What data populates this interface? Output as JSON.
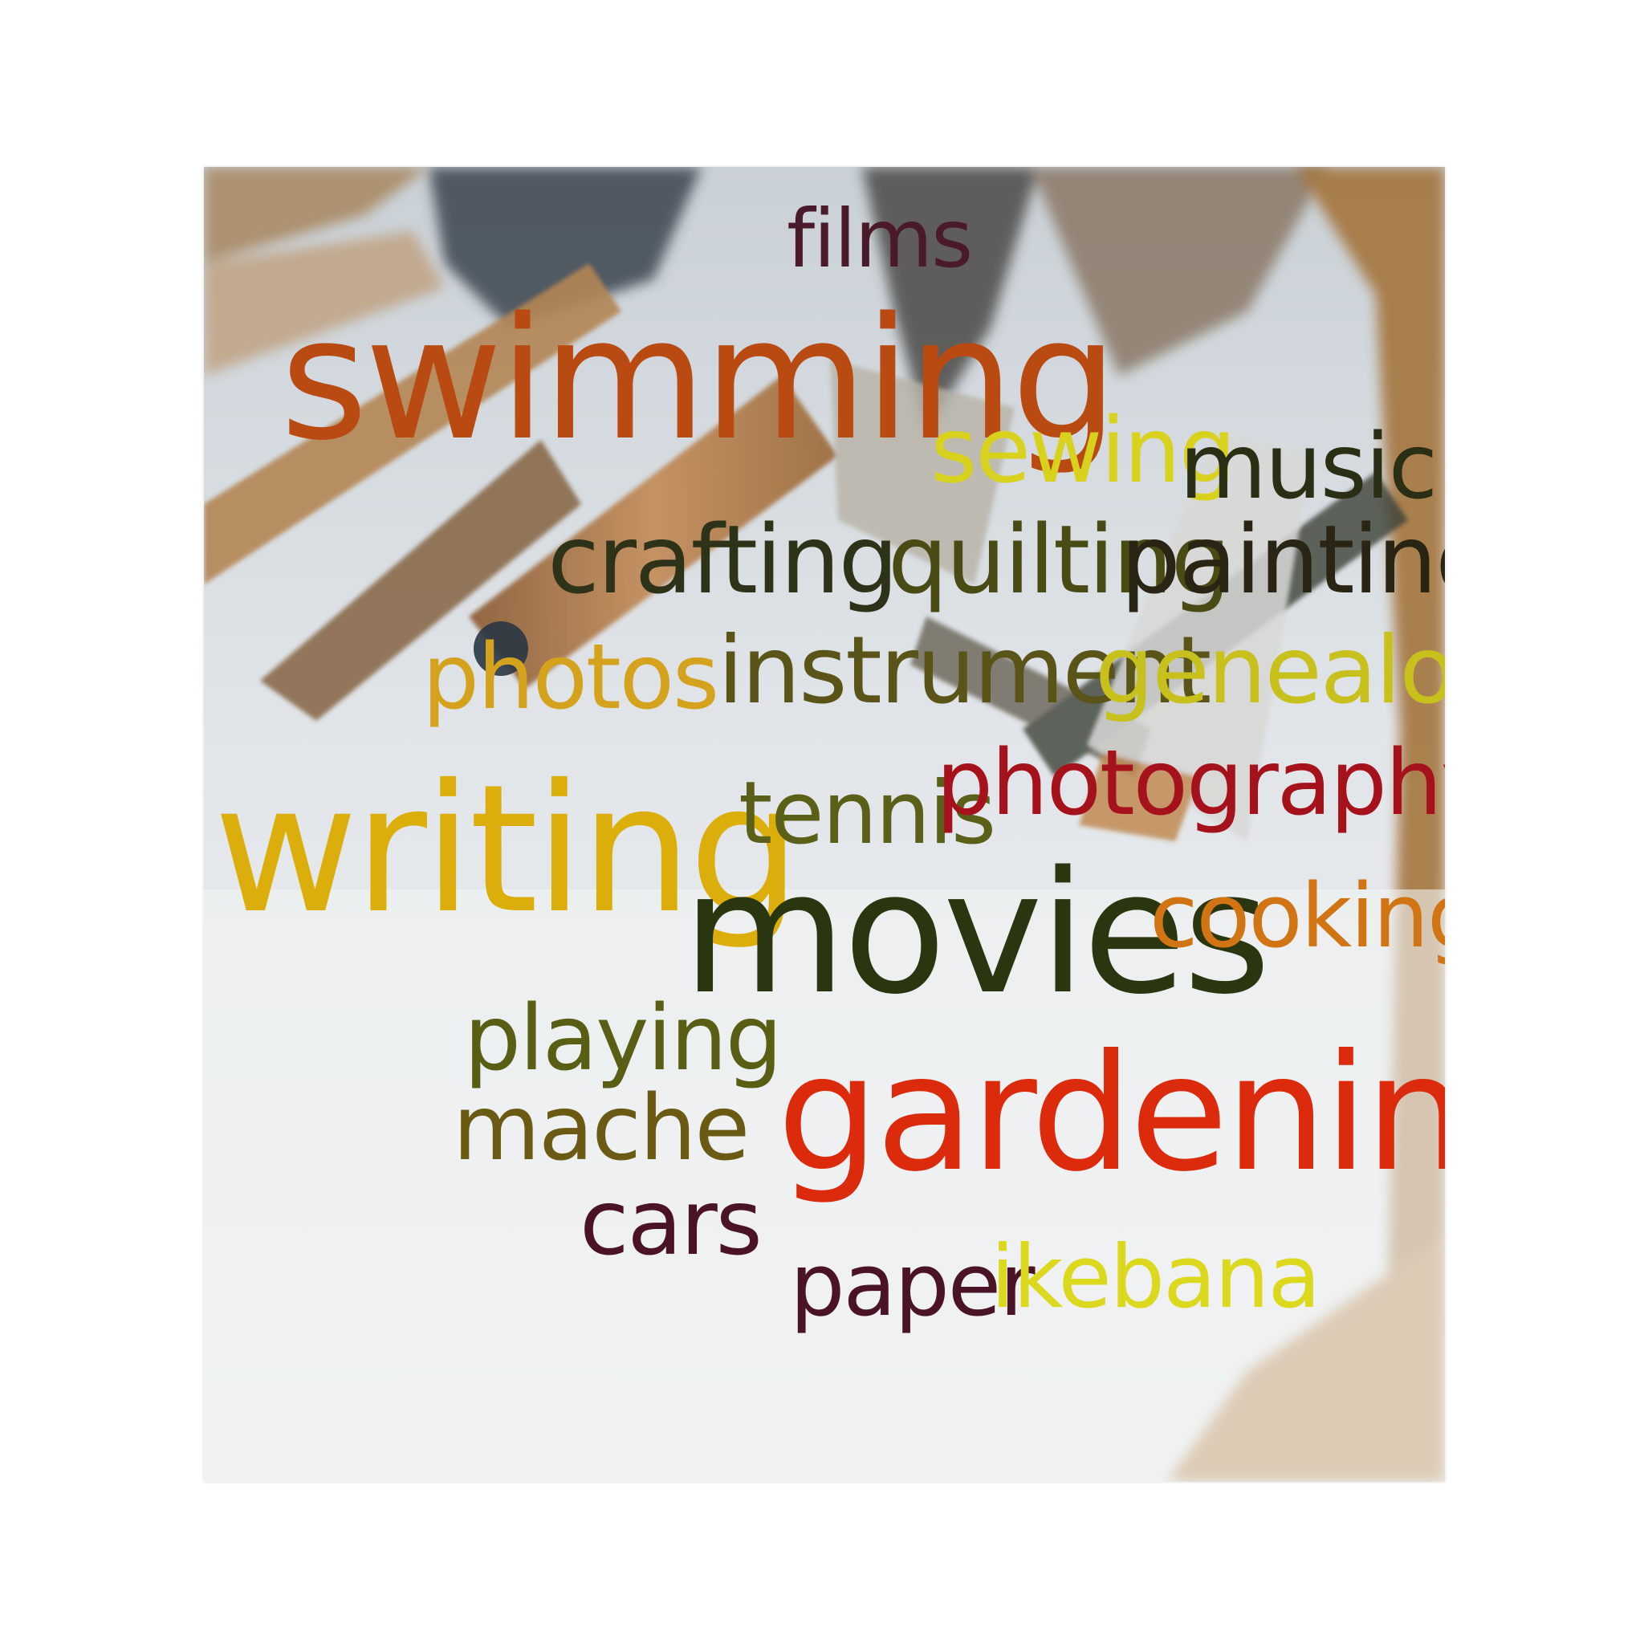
{
  "word_cloud": {
    "words": [
      {
        "text": "films",
        "color": "#4a1a2a"
      },
      {
        "text": "swimming",
        "color": "#b84a12"
      },
      {
        "text": "sewing",
        "color": "#d8d21e"
      },
      {
        "text": "music",
        "color": "#2a2e14"
      },
      {
        "text": "crafting",
        "color": "#2e3218"
      },
      {
        "text": "quilting",
        "color": "#4a4a14"
      },
      {
        "text": "painting",
        "color": "#2a2414"
      },
      {
        "text": "photos",
        "color": "#d4a21c"
      },
      {
        "text": "instrument",
        "color": "#5a5418"
      },
      {
        "text": "genealogy",
        "color": "#c8c01c"
      },
      {
        "text": "writing",
        "color": "#dcae0c"
      },
      {
        "text": "tennis",
        "color": "#5a6018"
      },
      {
        "text": "photography",
        "color": "#a6121c"
      },
      {
        "text": "movies",
        "color": "#2a3610"
      },
      {
        "text": "cooking",
        "color": "#d07414"
      },
      {
        "text": "playing",
        "color": "#5a5e14"
      },
      {
        "text": "mache",
        "color": "#6a5a14"
      },
      {
        "text": "gardening",
        "color": "#dc2a0c"
      },
      {
        "text": "cars",
        "color": "#4a1426"
      },
      {
        "text": "paper",
        "color": "#4a1426"
      },
      {
        "text": "ikebana",
        "color": "#dcd81e"
      }
    ]
  }
}
